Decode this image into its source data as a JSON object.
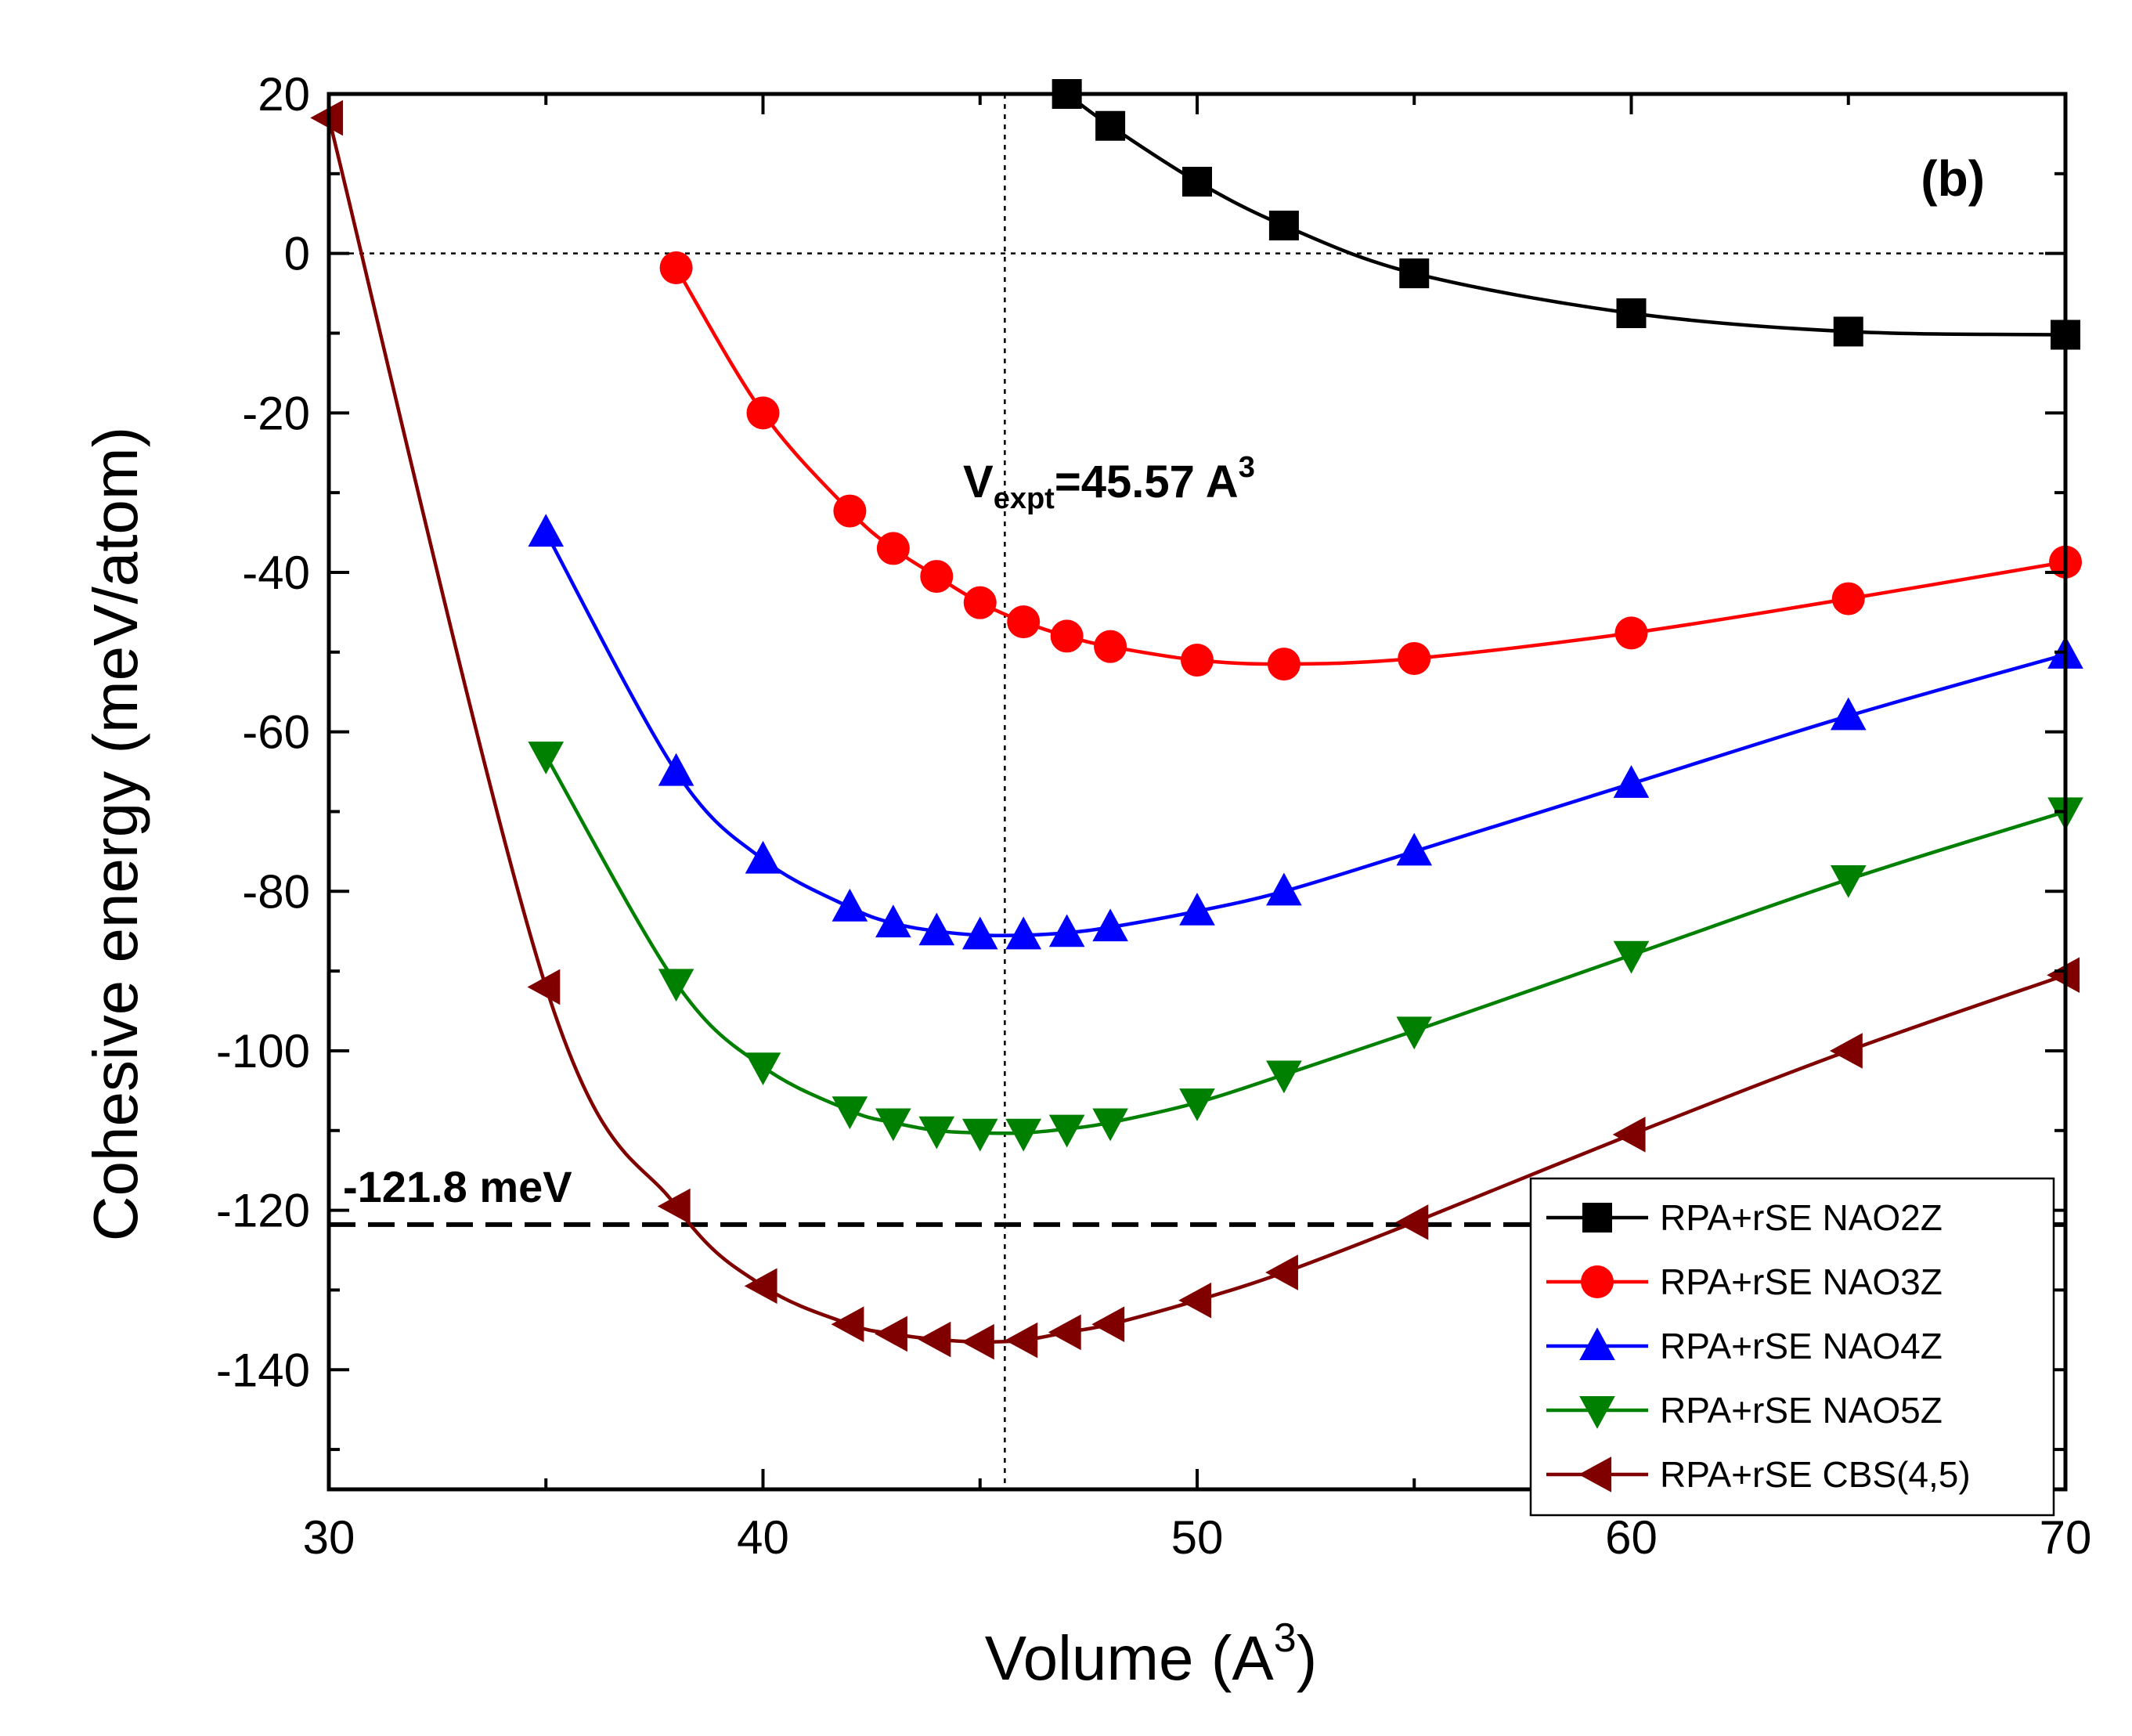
{
  "chart_data": {
    "type": "line",
    "panel_label": "(b)",
    "xlabel": "Volume (A",
    "xlabel_sup": "3",
    "xlabel_close": ")",
    "ylabel": "Cohesive energy (meV/atom)",
    "xlim": [
      30,
      70
    ],
    "ylim": [
      -155,
      20
    ],
    "xticks": [
      30,
      40,
      50,
      60,
      70
    ],
    "yticks": [
      20,
      0,
      -20,
      -40,
      -60,
      -80,
      -100,
      -120,
      -140
    ],
    "vexpt": {
      "x": 45.57,
      "label_v": "V",
      "label_sub": "expt",
      "label_value": "=45.57 A",
      "label_sup": "3"
    },
    "zero_line": 0,
    "reference": {
      "y": -121.8,
      "label": "-121.8 meV"
    },
    "legend_position": "bottom-right",
    "series": [
      {
        "name": "RPA+rSE NAO2Z",
        "color": "#000000",
        "marker": "square",
        "x": [
          47,
          48,
          50,
          52,
          55,
          60,
          65,
          70
        ],
        "y": [
          20,
          16,
          9,
          3.5,
          -2.5,
          -7.5,
          -9.8,
          -10.2
        ]
      },
      {
        "name": "RPA+rSE NAO3Z",
        "color": "#ff0000",
        "marker": "circle",
        "x": [
          38,
          40,
          42,
          43,
          44,
          45,
          46,
          47,
          48,
          50,
          52,
          55,
          60,
          65,
          70
        ],
        "y": [
          -1.8,
          -20,
          -32.3,
          -37,
          -40.5,
          -43.8,
          -46.2,
          -48,
          -49.3,
          -51,
          -51.5,
          -50.8,
          -47.6,
          -43.3,
          -38.7
        ]
      },
      {
        "name": "RPA+rSE NAO4Z",
        "color": "#0000ff",
        "marker": "triangle-up",
        "x": [
          35,
          38,
          40,
          42,
          43,
          44,
          45,
          46,
          47,
          48,
          50,
          52,
          55,
          60,
          65,
          70
        ],
        "y": [
          -35,
          -65,
          -76,
          -82,
          -84,
          -85,
          -85.5,
          -85.5,
          -85.2,
          -84.5,
          -82.5,
          -80,
          -75,
          -66.5,
          -58,
          -50.3
        ]
      },
      {
        "name": "RPA+rSE NAO5Z",
        "color": "#008000",
        "marker": "triangle-down",
        "x": [
          35,
          38,
          40,
          42,
          43,
          44,
          45,
          46,
          47,
          48,
          50,
          52,
          55,
          60,
          65,
          70
        ],
        "y": [
          -63,
          -91.5,
          -102,
          -107.5,
          -109,
          -110,
          -110.3,
          -110.3,
          -109.8,
          -109,
          -106.5,
          -103,
          -97.5,
          -88,
          -78.5,
          -70
        ]
      },
      {
        "name": "RPA+rSE CBS(4,5)",
        "color": "#800000",
        "marker": "triangle-left",
        "x": [
          30,
          35,
          38,
          40,
          42,
          43,
          44,
          45,
          46,
          47,
          48,
          50,
          52,
          55,
          60,
          65,
          70
        ],
        "y": [
          17,
          -92,
          -119.5,
          -129.5,
          -134.3,
          -135.5,
          -136.2,
          -136.5,
          -136.3,
          -135.3,
          -134.3,
          -131.3,
          -127.8,
          -121.5,
          -110.5,
          -100,
          -90.5
        ]
      }
    ]
  }
}
